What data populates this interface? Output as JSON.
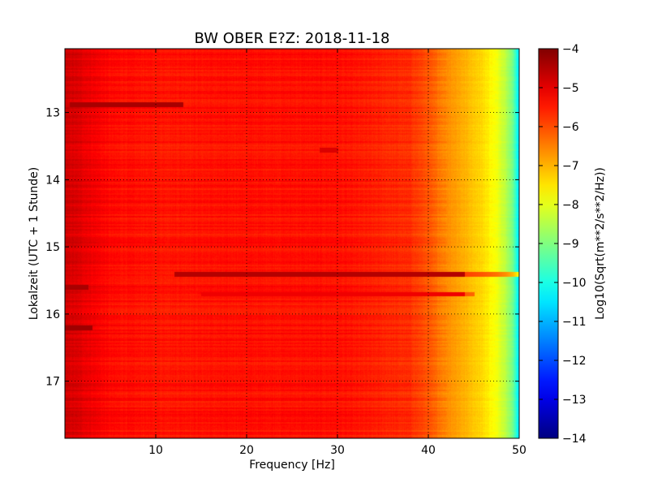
{
  "chart_data": {
    "type": "heatmap",
    "title": "BW OBER E?Z: 2018-11-18",
    "xlabel": "Frequency [Hz]",
    "ylabel": "Lokalzeit (UTC + 1 Stunde)",
    "colorbar_label": "Log10(Sqrt(m**2/s**2/Hz))",
    "xlim": [
      0,
      50
    ],
    "ylim": [
      12.05,
      17.85
    ],
    "y_inverted": true,
    "x_ticks": [
      10,
      20,
      30,
      40,
      50
    ],
    "x_tick_labels": [
      "10",
      "20",
      "30",
      "40",
      "50"
    ],
    "y_ticks": [
      13,
      14,
      15,
      16,
      17
    ],
    "y_tick_labels": [
      "13",
      "14",
      "15",
      "16",
      "17"
    ],
    "color_range": [
      -14,
      -4
    ],
    "colorbar_ticks": [
      -4,
      -5,
      -6,
      -7,
      -8,
      -9,
      -10,
      -11,
      -12,
      -13,
      -14
    ],
    "colorbar_tick_labels": [
      "−4",
      "−5",
      "−6",
      "−7",
      "−8",
      "−9",
      "−10",
      "−11",
      "−12",
      "−13",
      "−14"
    ],
    "colormap": "jet",
    "grid": true,
    "frequency_profile": [
      [
        0,
        -4.8
      ],
      [
        2,
        -5.0
      ],
      [
        5,
        -5.35
      ],
      [
        10,
        -5.45
      ],
      [
        20,
        -5.4
      ],
      [
        30,
        -5.4
      ],
      [
        38,
        -5.7
      ],
      [
        40,
        -6.1
      ],
      [
        42,
        -6.6
      ],
      [
        44,
        -7.0
      ],
      [
        46,
        -7.4
      ],
      [
        47.5,
        -7.9
      ],
      [
        48.5,
        -8.4
      ],
      [
        49.3,
        -9.2
      ],
      [
        50,
        -10.6
      ]
    ],
    "bands": [
      {
        "t": 12.88,
        "f_from": 0.5,
        "f_to": 13,
        "level": -4.4
      },
      {
        "t": 13.55,
        "f_from": 28,
        "f_to": 30,
        "level": -4.9
      },
      {
        "t": 15.4,
        "f_from": 12,
        "f_to": 50,
        "level": -4.5
      },
      {
        "t": 15.7,
        "f_from": 15,
        "f_to": 45,
        "level": -5.1
      },
      {
        "t": 16.2,
        "f_from": 0,
        "f_to": 3,
        "level": -4.3
      },
      {
        "t": 15.6,
        "f_from": 0,
        "f_to": 2.5,
        "level": -4.4
      }
    ]
  }
}
